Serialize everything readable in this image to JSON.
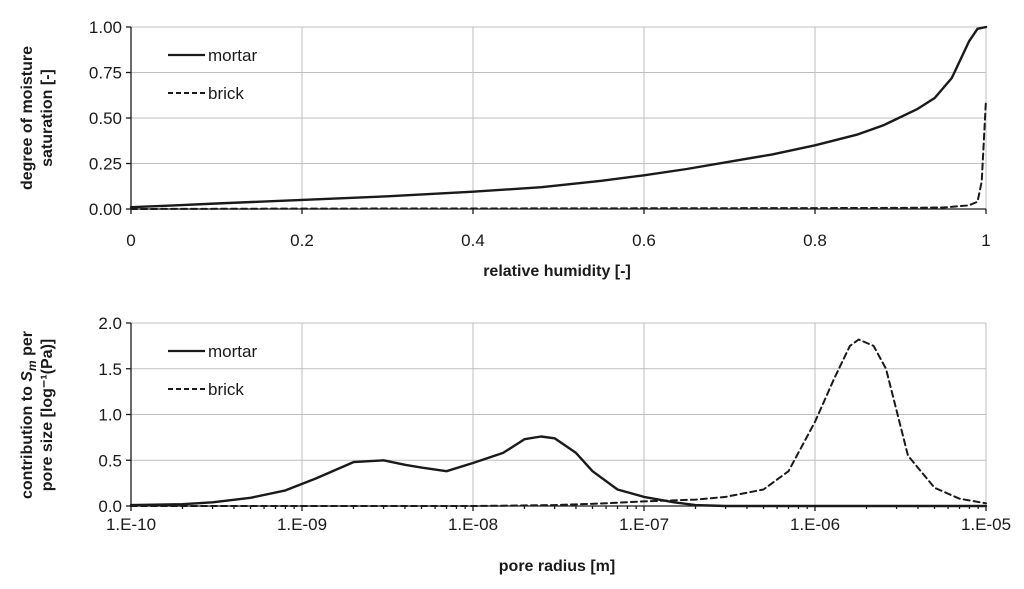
{
  "chart_data": [
    {
      "type": "line",
      "xlabel": "relative humidity [-]",
      "ylabel": [
        "degree of moisture",
        "saturation [-]"
      ],
      "xlim": [
        0,
        1
      ],
      "ylim": [
        0,
        1
      ],
      "x_ticks": [
        "0",
        "0.2",
        "0.4",
        "0.6",
        "0.8",
        "1"
      ],
      "y_ticks": [
        "0.00",
        "0.25",
        "0.50",
        "0.75",
        "1.00"
      ],
      "grid": true,
      "legend_position": "top-left",
      "series": [
        {
          "name": "mortar",
          "style": "solid",
          "x": [
            0,
            0.05,
            0.1,
            0.2,
            0.3,
            0.4,
            0.48,
            0.55,
            0.6,
            0.65,
            0.7,
            0.75,
            0.8,
            0.85,
            0.88,
            0.92,
            0.94,
            0.96,
            0.98,
            0.99,
            1.0
          ],
          "y": [
            0.01,
            0.02,
            0.03,
            0.05,
            0.07,
            0.095,
            0.12,
            0.155,
            0.185,
            0.22,
            0.26,
            0.3,
            0.35,
            0.41,
            0.46,
            0.55,
            0.61,
            0.72,
            0.92,
            0.99,
            1.0
          ]
        },
        {
          "name": "brick",
          "style": "dashed",
          "x": [
            0,
            0.2,
            0.4,
            0.6,
            0.8,
            0.9,
            0.95,
            0.98,
            0.99,
            0.995,
            1.0
          ],
          "y": [
            0.0,
            0.002,
            0.003,
            0.004,
            0.005,
            0.006,
            0.008,
            0.02,
            0.04,
            0.15,
            0.6
          ]
        }
      ]
    },
    {
      "type": "line",
      "xlabel": "pore radius [m]",
      "ylabel": [
        "contribution to S_m per",
        "pore size [log⁻¹(Pa)]"
      ],
      "xscale": "log",
      "xlim": [
        1e-10,
        1e-05
      ],
      "ylim": [
        0,
        2
      ],
      "x_ticks": [
        "1.E-10",
        "1.E-09",
        "1.E-08",
        "1.E-07",
        "1.E-06",
        "1.E-05"
      ],
      "y_ticks": [
        "0.0",
        "0.5",
        "1.0",
        "1.5",
        "2.0"
      ],
      "grid": true,
      "legend_position": "top-left",
      "series": [
        {
          "name": "mortar",
          "style": "solid",
          "x": [
            1e-10,
            2e-10,
            3e-10,
            5e-10,
            8e-10,
            1.2e-09,
            2e-09,
            3e-09,
            4e-09,
            5e-09,
            7e-09,
            1e-08,
            1.5e-08,
            2e-08,
            2.5e-08,
            3e-08,
            4e-08,
            5e-08,
            7e-08,
            1e-07,
            1.5e-07,
            2e-07,
            3e-07,
            1e-06,
            1e-05
          ],
          "y": [
            0.01,
            0.02,
            0.04,
            0.09,
            0.17,
            0.3,
            0.48,
            0.5,
            0.45,
            0.42,
            0.38,
            0.47,
            0.58,
            0.73,
            0.76,
            0.74,
            0.58,
            0.38,
            0.18,
            0.1,
            0.04,
            0.01,
            0.0,
            0.0,
            0.0
          ]
        },
        {
          "name": "brick",
          "style": "dashed",
          "x": [
            1e-10,
            1e-09,
            1e-08,
            3e-08,
            6e-08,
            1e-07,
            2e-07,
            3e-07,
            5e-07,
            7e-07,
            1e-06,
            1.3e-06,
            1.6e-06,
            1.8e-06,
            2.2e-06,
            2.6e-06,
            3.5e-06,
            5e-06,
            7e-06,
            1e-05
          ],
          "y": [
            0.0,
            0.0,
            0.0,
            0.01,
            0.03,
            0.05,
            0.07,
            0.1,
            0.18,
            0.38,
            0.92,
            1.4,
            1.75,
            1.82,
            1.75,
            1.5,
            0.55,
            0.2,
            0.08,
            0.03
          ]
        }
      ]
    }
  ]
}
